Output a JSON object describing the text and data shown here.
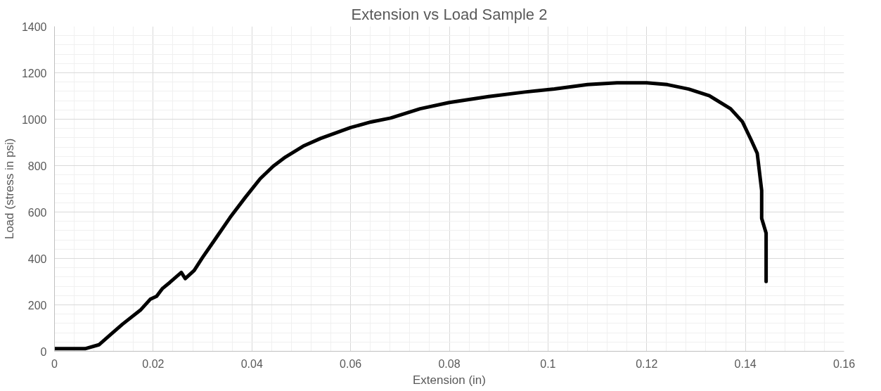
{
  "chart_data": {
    "type": "line",
    "title": "Extension vs Load Sample 2",
    "xlabel": "Extension (in)",
    "ylabel": "Load (stress in psi)",
    "xlim": [
      0,
      0.16
    ],
    "xticks": [
      0,
      0.02,
      0.04,
      0.06,
      0.08,
      0.1,
      0.12,
      0.14,
      0.16
    ],
    "ylim": [
      0,
      1400
    ],
    "yticks": [
      0,
      200,
      400,
      600,
      800,
      1000,
      1200,
      1400
    ],
    "grid": true,
    "marker": "none",
    "line_style": "solid",
    "series": [
      {
        "color": "#000000",
        "x": [
          0,
          0.0062,
          0.009,
          0.0113,
          0.0138,
          0.0174,
          0.0194,
          0.0207,
          0.0219,
          0.0234,
          0.0257,
          0.0265,
          0.0283,
          0.03,
          0.0326,
          0.0356,
          0.0387,
          0.0417,
          0.0443,
          0.0468,
          0.0504,
          0.0539,
          0.06,
          0.0641,
          0.0681,
          0.0741,
          0.08,
          0.088,
          0.0953,
          0.1013,
          0.108,
          0.114,
          0.12,
          0.1242,
          0.1285,
          0.1327,
          0.137,
          0.1394,
          0.1412,
          0.1424,
          0.1433,
          0.1433,
          0.1442,
          0.1442
        ],
        "values": [
          11,
          11,
          28,
          71,
          117,
          177,
          224,
          237,
          271,
          297,
          340,
          313,
          348,
          404,
          484,
          577,
          664,
          744,
          797,
          837,
          884,
          917,
          964,
          988,
          1005,
          1045,
          1072,
          1098,
          1117,
          1130,
          1149,
          1157,
          1157,
          1149,
          1130,
          1101,
          1045,
          989,
          909,
          853,
          693,
          573,
          509,
          301
        ]
      }
    ]
  }
}
